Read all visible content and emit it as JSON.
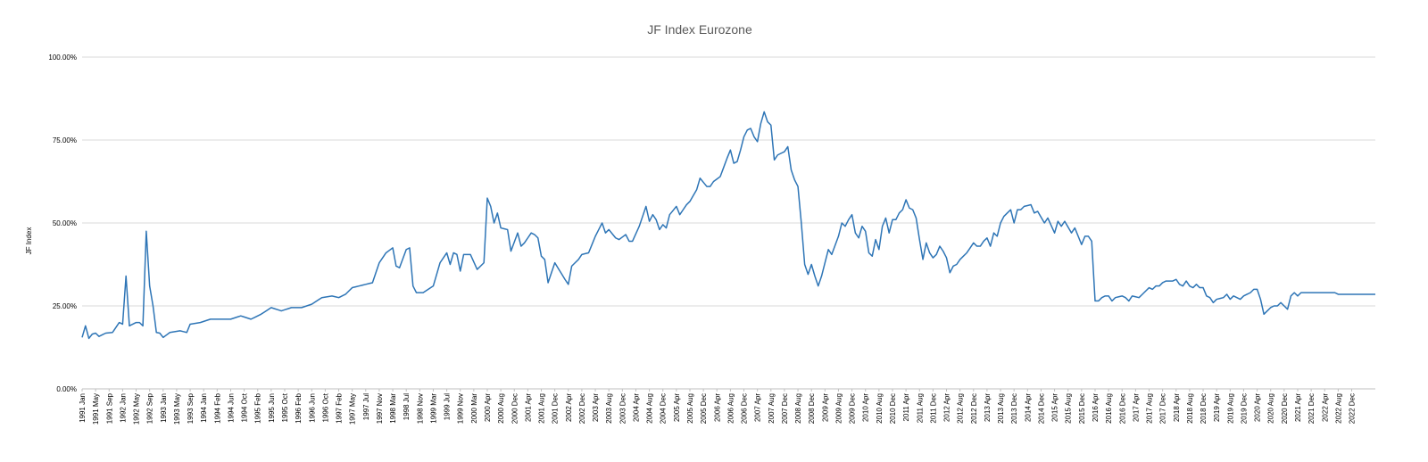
{
  "chart_data": {
    "type": "line",
    "title": "JF Index Eurozone",
    "xlabel": "",
    "ylabel": "JF Index",
    "ylim": [
      0,
      1
    ],
    "yticks": [
      0,
      0.25,
      0.5,
      0.75,
      1.0
    ],
    "ytick_labels": [
      "0.00%",
      "25.00%",
      "50.00%",
      "75.00%",
      "100.00%"
    ],
    "grid": true,
    "legend": "none",
    "color": "#2e75b6",
    "x_start": "1991-01",
    "x_step_months": 1,
    "x_tick_every_months": 4,
    "x_tick_labels": [
      "1991 Jan",
      "1991 May",
      "1991 Sep",
      "1992 Jan",
      "1992 May",
      "1992 Sep",
      "1993 Jan",
      "1993 May",
      "1993 Sep",
      "1994 Jan",
      "1994 Feb",
      "1994 Jun",
      "1994 Oct",
      "1995 Feb",
      "1995 Jun",
      "1995 Oct",
      "1996 Feb",
      "1996 Jun",
      "1996 Oct",
      "1997 Feb",
      "1997 May",
      "1997 Jul",
      "1997 Nov",
      "1998 Mar",
      "1998 Jul",
      "1998 Nov",
      "1999 Mar",
      "1999 Jul",
      "1999 Nov",
      "2000 Mar",
      "2000 Apr",
      "2000 Aug",
      "2000 Dec",
      "2001 Apr",
      "2001 Aug",
      "2001 Dec",
      "2002 Apr",
      "2002 Dec",
      "2003 Apr",
      "2003 Aug",
      "2003 Dec",
      "2004 Apr",
      "2004 Aug",
      "2004 Dec",
      "2005 Apr",
      "2005 Aug",
      "2005 Dec",
      "2006 Apr",
      "2006 Aug",
      "2006 Dec",
      "2007 Apr",
      "2007 Aug",
      "2007 Dec",
      "2008 Aug",
      "2008 Dec",
      "2009 Apr",
      "2009 Aug",
      "2009 Dec",
      "2010 Apr",
      "2010 Aug",
      "2010 Dec",
      "2011 Apr",
      "2011 Aug",
      "2011 Dec",
      "2012 Apr",
      "2012 Aug",
      "2012 Dec",
      "2013 Apr",
      "2013 Aug",
      "2013 Dec",
      "2014 Apr",
      "2014 Dec",
      "2015 Apr",
      "2015 Aug",
      "2015 Dec",
      "2016 Apr",
      "2016 Aug",
      "2016 Dec",
      "2017 Apr",
      "2017 Aug",
      "2017 Dec",
      "2018 Apr",
      "2018 Aug",
      "2018 Dec",
      "2019 Apr",
      "2019 Aug",
      "2019 Dec",
      "2020 Apr",
      "2020 Aug",
      "2020 Dec",
      "2021 Apr",
      "2021 Dec",
      "2022 Apr",
      "2022 Aug",
      "2022 Dec"
    ],
    "anchors": [
      [
        "1991-01",
        0.155
      ],
      [
        "1991-02",
        0.19
      ],
      [
        "1991-03",
        0.152
      ],
      [
        "1991-04",
        0.165
      ],
      [
        "1991-05",
        0.168
      ],
      [
        "1991-06",
        0.158
      ],
      [
        "1991-08",
        0.168
      ],
      [
        "1991-10",
        0.17
      ],
      [
        "1991-12",
        0.2
      ],
      [
        "1992-01",
        0.195
      ],
      [
        "1992-02",
        0.34
      ],
      [
        "1992-03",
        0.19
      ],
      [
        "1992-05",
        0.2
      ],
      [
        "1992-06",
        0.2
      ],
      [
        "1992-07",
        0.19
      ],
      [
        "1992-08",
        0.475
      ],
      [
        "1992-09",
        0.31
      ],
      [
        "1992-10",
        0.25
      ],
      [
        "1992-11",
        0.17
      ],
      [
        "1992-12",
        0.168
      ],
      [
        "1993-01",
        0.155
      ],
      [
        "1993-03",
        0.17
      ],
      [
        "1993-06",
        0.175
      ],
      [
        "1993-08",
        0.17
      ],
      [
        "1993-09",
        0.195
      ],
      [
        "1993-12",
        0.2
      ],
      [
        "1994-03",
        0.21
      ],
      [
        "1994-06",
        0.21
      ],
      [
        "1994-09",
        0.21
      ],
      [
        "1994-12",
        0.22
      ],
      [
        "1995-03",
        0.21
      ],
      [
        "1995-06",
        0.225
      ],
      [
        "1995-09",
        0.245
      ],
      [
        "1995-12",
        0.235
      ],
      [
        "1996-03",
        0.245
      ],
      [
        "1996-06",
        0.245
      ],
      [
        "1996-09",
        0.255
      ],
      [
        "1996-12",
        0.275
      ],
      [
        "1997-03",
        0.28
      ],
      [
        "1997-05",
        0.275
      ],
      [
        "1997-07",
        0.285
      ],
      [
        "1997-09",
        0.305
      ],
      [
        "1997-11",
        0.31
      ],
      [
        "1998-01",
        0.315
      ],
      [
        "1998-03",
        0.32
      ],
      [
        "1998-05",
        0.38
      ],
      [
        "1998-07",
        0.41
      ],
      [
        "1998-09",
        0.425
      ],
      [
        "1998-10",
        0.37
      ],
      [
        "1998-11",
        0.365
      ],
      [
        "1999-01",
        0.42
      ],
      [
        "1999-02",
        0.425
      ],
      [
        "1999-03",
        0.31
      ],
      [
        "1999-04",
        0.29
      ],
      [
        "1999-06",
        0.29
      ],
      [
        "1999-09",
        0.31
      ],
      [
        "1999-11",
        0.38
      ],
      [
        "2000-01",
        0.41
      ],
      [
        "2000-02",
        0.375
      ],
      [
        "2000-03",
        0.41
      ],
      [
        "2000-04",
        0.405
      ],
      [
        "2000-05",
        0.355
      ],
      [
        "2000-06",
        0.405
      ],
      [
        "2000-08",
        0.405
      ],
      [
        "2000-10",
        0.36
      ],
      [
        "2000-12",
        0.38
      ],
      [
        "2001-01",
        0.575
      ],
      [
        "2001-02",
        0.55
      ],
      [
        "2001-03",
        0.5
      ],
      [
        "2001-04",
        0.53
      ],
      [
        "2001-05",
        0.485
      ],
      [
        "2001-07",
        0.48
      ],
      [
        "2001-08",
        0.415
      ],
      [
        "2001-10",
        0.47
      ],
      [
        "2001-11",
        0.43
      ],
      [
        "2001-12",
        0.44
      ],
      [
        "2002-02",
        0.47
      ],
      [
        "2002-03",
        0.465
      ],
      [
        "2002-04",
        0.455
      ],
      [
        "2002-05",
        0.4
      ],
      [
        "2002-06",
        0.39
      ],
      [
        "2002-07",
        0.32
      ],
      [
        "2002-09",
        0.38
      ],
      [
        "2002-12",
        0.33
      ],
      [
        "2003-01",
        0.315
      ],
      [
        "2003-02",
        0.37
      ],
      [
        "2003-04",
        0.39
      ],
      [
        "2003-05",
        0.405
      ],
      [
        "2003-07",
        0.41
      ],
      [
        "2003-09",
        0.46
      ],
      [
        "2003-11",
        0.5
      ],
      [
        "2003-12",
        0.47
      ],
      [
        "2004-01",
        0.48
      ],
      [
        "2004-03",
        0.455
      ],
      [
        "2004-04",
        0.45
      ],
      [
        "2004-06",
        0.465
      ],
      [
        "2004-07",
        0.445
      ],
      [
        "2004-08",
        0.445
      ],
      [
        "2004-10",
        0.49
      ],
      [
        "2004-12",
        0.55
      ],
      [
        "2005-01",
        0.505
      ],
      [
        "2005-02",
        0.525
      ],
      [
        "2005-03",
        0.51
      ],
      [
        "2005-04",
        0.48
      ],
      [
        "2005-05",
        0.495
      ],
      [
        "2005-06",
        0.485
      ],
      [
        "2005-07",
        0.525
      ],
      [
        "2005-09",
        0.55
      ],
      [
        "2005-10",
        0.525
      ],
      [
        "2005-12",
        0.555
      ],
      [
        "2006-01",
        0.565
      ],
      [
        "2006-03",
        0.6
      ],
      [
        "2006-04",
        0.635
      ],
      [
        "2006-06",
        0.61
      ],
      [
        "2006-07",
        0.61
      ],
      [
        "2006-08",
        0.625
      ],
      [
        "2006-10",
        0.64
      ],
      [
        "2006-12",
        0.695
      ],
      [
        "2007-01",
        0.72
      ],
      [
        "2007-02",
        0.68
      ],
      [
        "2007-03",
        0.685
      ],
      [
        "2007-04",
        0.72
      ],
      [
        "2007-05",
        0.76
      ],
      [
        "2007-06",
        0.78
      ],
      [
        "2007-07",
        0.785
      ],
      [
        "2007-08",
        0.76
      ],
      [
        "2007-09",
        0.745
      ],
      [
        "2007-10",
        0.8
      ],
      [
        "2007-11",
        0.835
      ],
      [
        "2007-12",
        0.805
      ],
      [
        "2008-01",
        0.795
      ],
      [
        "2008-02",
        0.69
      ],
      [
        "2008-03",
        0.705
      ],
      [
        "2008-05",
        0.715
      ],
      [
        "2008-06",
        0.73
      ],
      [
        "2008-07",
        0.66
      ],
      [
        "2008-08",
        0.63
      ],
      [
        "2008-09",
        0.61
      ],
      [
        "2008-10",
        0.5
      ],
      [
        "2008-11",
        0.375
      ],
      [
        "2008-12",
        0.345
      ],
      [
        "2009-01",
        0.375
      ],
      [
        "2009-02",
        0.34
      ],
      [
        "2009-03",
        0.31
      ],
      [
        "2009-04",
        0.34
      ],
      [
        "2009-06",
        0.42
      ],
      [
        "2009-07",
        0.405
      ],
      [
        "2009-09",
        0.46
      ],
      [
        "2009-10",
        0.5
      ],
      [
        "2009-11",
        0.49
      ],
      [
        "2009-12",
        0.51
      ],
      [
        "2010-01",
        0.525
      ],
      [
        "2010-02",
        0.47
      ],
      [
        "2010-03",
        0.455
      ],
      [
        "2010-04",
        0.49
      ],
      [
        "2010-05",
        0.475
      ],
      [
        "2010-06",
        0.41
      ],
      [
        "2010-07",
        0.4
      ],
      [
        "2010-08",
        0.45
      ],
      [
        "2010-09",
        0.42
      ],
      [
        "2010-10",
        0.49
      ],
      [
        "2010-11",
        0.515
      ],
      [
        "2010-12",
        0.47
      ],
      [
        "2011-01",
        0.51
      ],
      [
        "2011-02",
        0.51
      ],
      [
        "2011-03",
        0.53
      ],
      [
        "2011-04",
        0.54
      ],
      [
        "2011-05",
        0.57
      ],
      [
        "2011-06",
        0.545
      ],
      [
        "2011-07",
        0.54
      ],
      [
        "2011-08",
        0.515
      ],
      [
        "2011-09",
        0.45
      ],
      [
        "2011-10",
        0.39
      ],
      [
        "2011-11",
        0.44
      ],
      [
        "2011-12",
        0.41
      ],
      [
        "2012-01",
        0.395
      ],
      [
        "2012-02",
        0.405
      ],
      [
        "2012-03",
        0.43
      ],
      [
        "2012-04",
        0.415
      ],
      [
        "2012-05",
        0.395
      ],
      [
        "2012-06",
        0.35
      ],
      [
        "2012-07",
        0.37
      ],
      [
        "2012-08",
        0.375
      ],
      [
        "2012-09",
        0.39
      ],
      [
        "2012-11",
        0.41
      ],
      [
        "2013-01",
        0.44
      ],
      [
        "2013-02",
        0.43
      ],
      [
        "2013-03",
        0.43
      ],
      [
        "2013-04",
        0.445
      ],
      [
        "2013-05",
        0.455
      ],
      [
        "2013-06",
        0.43
      ],
      [
        "2013-07",
        0.47
      ],
      [
        "2013-08",
        0.46
      ],
      [
        "2013-09",
        0.5
      ],
      [
        "2013-10",
        0.52
      ],
      [
        "2013-12",
        0.54
      ],
      [
        "2014-01",
        0.5
      ],
      [
        "2014-02",
        0.54
      ],
      [
        "2014-03",
        0.54
      ],
      [
        "2014-04",
        0.55
      ],
      [
        "2014-06",
        0.555
      ],
      [
        "2014-07",
        0.53
      ],
      [
        "2014-08",
        0.535
      ],
      [
        "2014-10",
        0.5
      ],
      [
        "2014-11",
        0.515
      ],
      [
        "2015-01",
        0.47
      ],
      [
        "2015-02",
        0.505
      ],
      [
        "2015-03",
        0.49
      ],
      [
        "2015-04",
        0.505
      ],
      [
        "2015-06",
        0.47
      ],
      [
        "2015-07",
        0.485
      ],
      [
        "2015-08",
        0.46
      ],
      [
        "2015-09",
        0.435
      ],
      [
        "2015-10",
        0.46
      ],
      [
        "2015-11",
        0.46
      ],
      [
        "2015-12",
        0.445
      ],
      [
        "2016-01",
        0.265
      ],
      [
        "2016-02",
        0.265
      ],
      [
        "2016-03",
        0.275
      ],
      [
        "2016-04",
        0.28
      ],
      [
        "2016-05",
        0.28
      ],
      [
        "2016-06",
        0.265
      ],
      [
        "2016-07",
        0.275
      ],
      [
        "2016-09",
        0.28
      ],
      [
        "2016-10",
        0.275
      ],
      [
        "2016-11",
        0.265
      ],
      [
        "2016-12",
        0.28
      ],
      [
        "2017-02",
        0.275
      ],
      [
        "2017-04",
        0.295
      ],
      [
        "2017-05",
        0.305
      ],
      [
        "2017-06",
        0.3
      ],
      [
        "2017-07",
        0.31
      ],
      [
        "2017-08",
        0.31
      ],
      [
        "2017-09",
        0.32
      ],
      [
        "2017-10",
        0.325
      ],
      [
        "2017-12",
        0.325
      ],
      [
        "2018-01",
        0.33
      ],
      [
        "2018-02",
        0.315
      ],
      [
        "2018-03",
        0.31
      ],
      [
        "2018-04",
        0.325
      ],
      [
        "2018-05",
        0.31
      ],
      [
        "2018-06",
        0.305
      ],
      [
        "2018-07",
        0.315
      ],
      [
        "2018-08",
        0.305
      ],
      [
        "2018-09",
        0.305
      ],
      [
        "2018-10",
        0.28
      ],
      [
        "2018-11",
        0.275
      ],
      [
        "2018-12",
        0.26
      ],
      [
        "2019-01",
        0.27
      ],
      [
        "2019-03",
        0.275
      ],
      [
        "2019-04",
        0.285
      ],
      [
        "2019-05",
        0.27
      ],
      [
        "2019-06",
        0.28
      ],
      [
        "2019-08",
        0.27
      ],
      [
        "2019-09",
        0.28
      ],
      [
        "2019-11",
        0.29
      ],
      [
        "2019-12",
        0.3
      ],
      [
        "2020-01",
        0.3
      ],
      [
        "2020-02",
        0.27
      ],
      [
        "2020-03",
        0.225
      ],
      [
        "2020-04",
        0.235
      ],
      [
        "2020-05",
        0.245
      ],
      [
        "2020-06",
        0.25
      ],
      [
        "2020-07",
        0.25
      ],
      [
        "2020-08",
        0.26
      ],
      [
        "2020-09",
        0.25
      ],
      [
        "2020-10",
        0.24
      ],
      [
        "2020-11",
        0.28
      ],
      [
        "2020-12",
        0.29
      ],
      [
        "2021-01",
        0.28
      ],
      [
        "2021-02",
        0.29
      ],
      [
        "2021-12",
        0.29
      ],
      [
        "2022-01",
        0.285
      ],
      [
        "2022-12",
        0.285
      ]
    ]
  }
}
